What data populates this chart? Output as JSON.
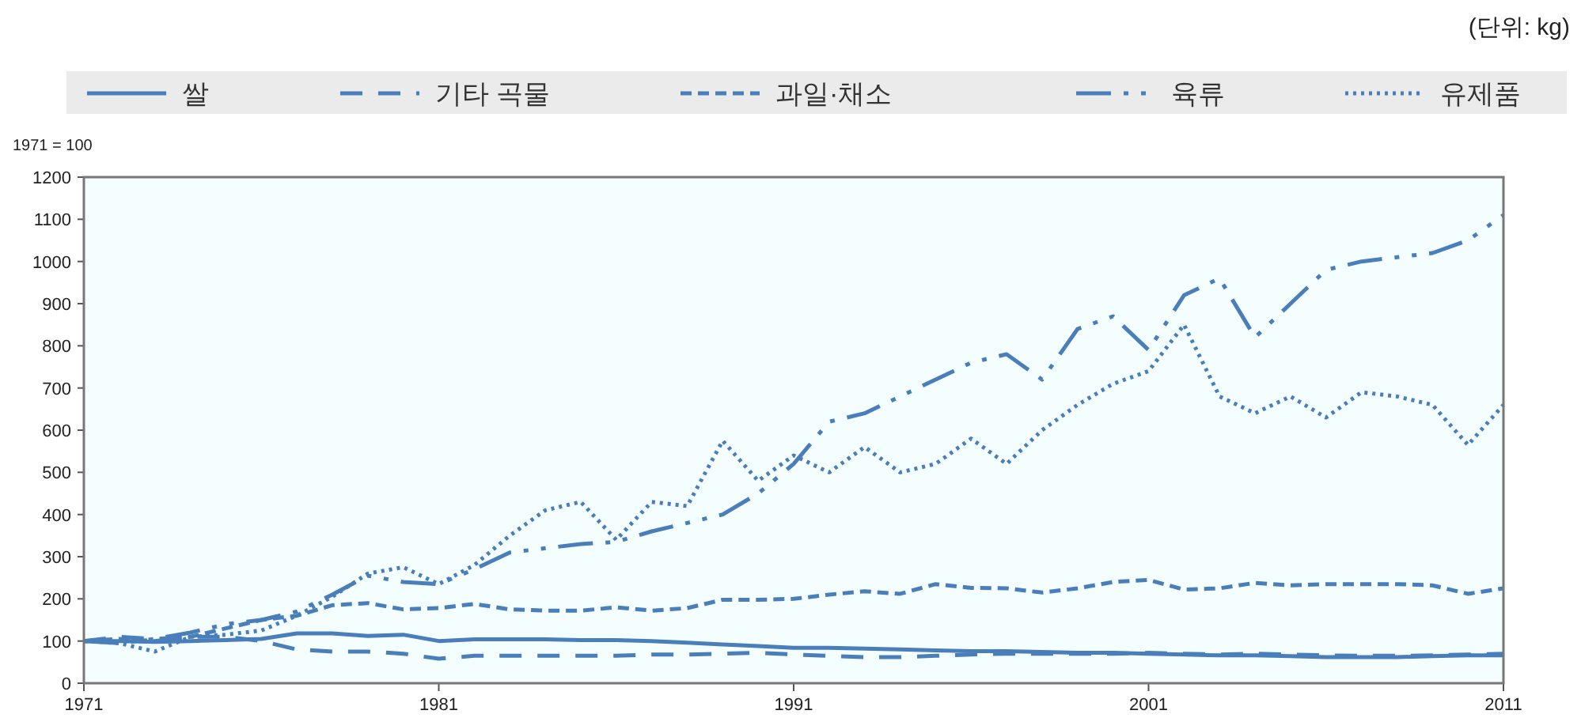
{
  "chart_data": {
    "type": "line",
    "annotations": [
      "(단위: kg)",
      "1971 = 100"
    ],
    "legend": "top",
    "xlim": [
      1971,
      2011
    ],
    "xticks": [
      1971,
      1981,
      1991,
      2001,
      2011
    ],
    "ylim": [
      0,
      1200
    ],
    "yticks": [
      0,
      100,
      200,
      300,
      400,
      500,
      600,
      700,
      800,
      900,
      1000,
      1100,
      1200
    ],
    "x": [
      1971,
      1972,
      1973,
      1974,
      1975,
      1976,
      1977,
      1978,
      1979,
      1980,
      1981,
      1982,
      1983,
      1984,
      1985,
      1986,
      1987,
      1988,
      1989,
      1990,
      1991,
      1992,
      1993,
      1994,
      1995,
      1996,
      1997,
      1998,
      1999,
      2000,
      2001,
      2002,
      2003,
      2004,
      2005,
      2006,
      2007,
      2008,
      2009,
      2010,
      2011
    ],
    "series": [
      {
        "name": "쌀",
        "color": "#4a7ebb",
        "line_style": "solid",
        "values": [
          100,
          100,
          98,
          100,
          102,
          105,
          118,
          118,
          112,
          115,
          100,
          104,
          104,
          104,
          102,
          102,
          100,
          96,
          92,
          88,
          84,
          84,
          82,
          80,
          78,
          76,
          76,
          74,
          72,
          72,
          70,
          68,
          66,
          66,
          64,
          62,
          62,
          62,
          64,
          66,
          66
        ]
      },
      {
        "name": "기타 곡물",
        "color": "#4a7ebb",
        "line_style": "longdash",
        "values": [
          100,
          110,
          105,
          110,
          110,
          100,
          80,
          75,
          75,
          70,
          58,
          65,
          65,
          65,
          65,
          65,
          68,
          68,
          70,
          72,
          68,
          65,
          62,
          62,
          65,
          68,
          70,
          70,
          70,
          70,
          72,
          70,
          68,
          70,
          68,
          66,
          65,
          65,
          66,
          68,
          70
        ]
      },
      {
        "name": "과일·채소",
        "color": "#4a7ebb",
        "line_style": "dashed",
        "values": [
          100,
          105,
          100,
          110,
          130,
          150,
          160,
          185,
          190,
          175,
          178,
          188,
          175,
          172,
          172,
          180,
          172,
          178,
          198,
          198,
          200,
          210,
          218,
          212,
          235,
          226,
          225,
          215,
          225,
          240,
          245,
          222,
          225,
          238,
          232,
          235,
          235,
          235,
          232,
          212,
          225
        ]
      },
      {
        "name": "육류",
        "color": "#4a7ebb",
        "line_style": "dashdot",
        "values": [
          100,
          95,
          105,
          120,
          140,
          150,
          170,
          210,
          255,
          240,
          235,
          270,
          310,
          320,
          330,
          335,
          360,
          380,
          400,
          450,
          520,
          620,
          640,
          680,
          720,
          760,
          780,
          720,
          840,
          870,
          790,
          920,
          960,
          820,
          900,
          980,
          1000,
          1010,
          1020,
          1050,
          1110
        ]
      },
      {
        "name": "유제품",
        "color": "#4a7ebb",
        "line_style": "dotted",
        "values": [
          100,
          95,
          75,
          110,
          115,
          125,
          160,
          205,
          260,
          275,
          235,
          280,
          350,
          410,
          430,
          340,
          430,
          420,
          575,
          480,
          540,
          500,
          560,
          500,
          520,
          580,
          520,
          600,
          660,
          710,
          740,
          850,
          680,
          640,
          680,
          630,
          690,
          680,
          660,
          565,
          660
        ]
      }
    ]
  }
}
